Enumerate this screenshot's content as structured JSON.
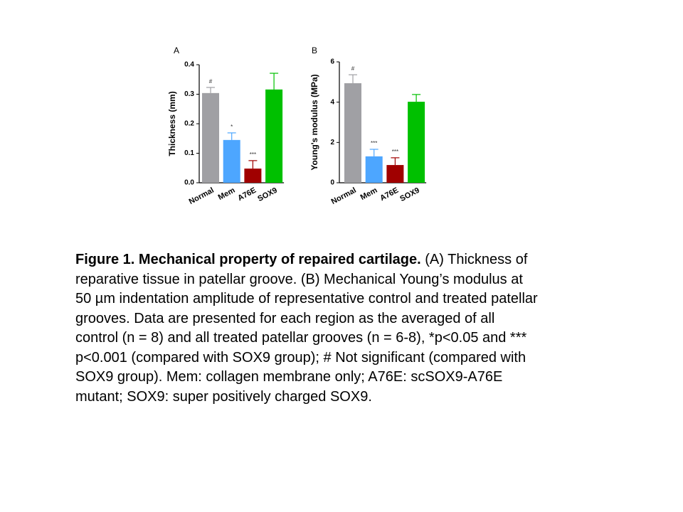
{
  "chart_data": [
    {
      "type": "bar",
      "panel": "A",
      "ylabel": "Thickness (mm)",
      "categories": [
        "Normal",
        "Mem",
        "A76E",
        "SOX9"
      ],
      "values": [
        0.304,
        0.145,
        0.048,
        0.316
      ],
      "errors": [
        0.019,
        0.024,
        0.027,
        0.055
      ],
      "annotations": [
        "#",
        "*",
        "***",
        null
      ],
      "colors": [
        "#a0a0a4",
        "#4da6ff",
        "#a00000",
        "#00c000"
      ],
      "ylim": [
        0,
        0.4
      ],
      "yticks": [
        {
          "value": 0,
          "label": "0.0"
        },
        0.1,
        0.2,
        0.3,
        0.4
      ]
    },
    {
      "type": "bar",
      "panel": "B",
      "ylabel": "Young's modulus (MPa)",
      "categories": [
        "Normal",
        "Mem",
        "A76E",
        "SOX9"
      ],
      "values": [
        4.94,
        1.31,
        0.88,
        4.02
      ],
      "errors": [
        0.42,
        0.35,
        0.36,
        0.36
      ],
      "annotations": [
        "#",
        "***",
        "***",
        null
      ],
      "colors": [
        "#a0a0a4",
        "#4da6ff",
        "#a00000",
        "#00c000"
      ],
      "ylim": [
        0,
        6
      ],
      "yticks": [
        0,
        2,
        4,
        6
      ]
    }
  ],
  "caption": {
    "title": "Figure 1. Mechanical property of repaired cartilage.",
    "text": "(A) Thickness of reparative tissue in patellar groove. (B) Mechanical Young’s modulus at 50 µm indentation amplitude of representative control and treated patellar grooves. Data are presented for each region as the averaged of all control (n = 8) and all treated patellar grooves (n = 6-8), *p<0.05 and *** p<0.001 (compared with SOX9 group); # Not significant (compared with SOX9 group). Mem: collagen membrane only; A76E: scSOX9-A76E mutant; SOX9: super positively charged SOX9."
  }
}
